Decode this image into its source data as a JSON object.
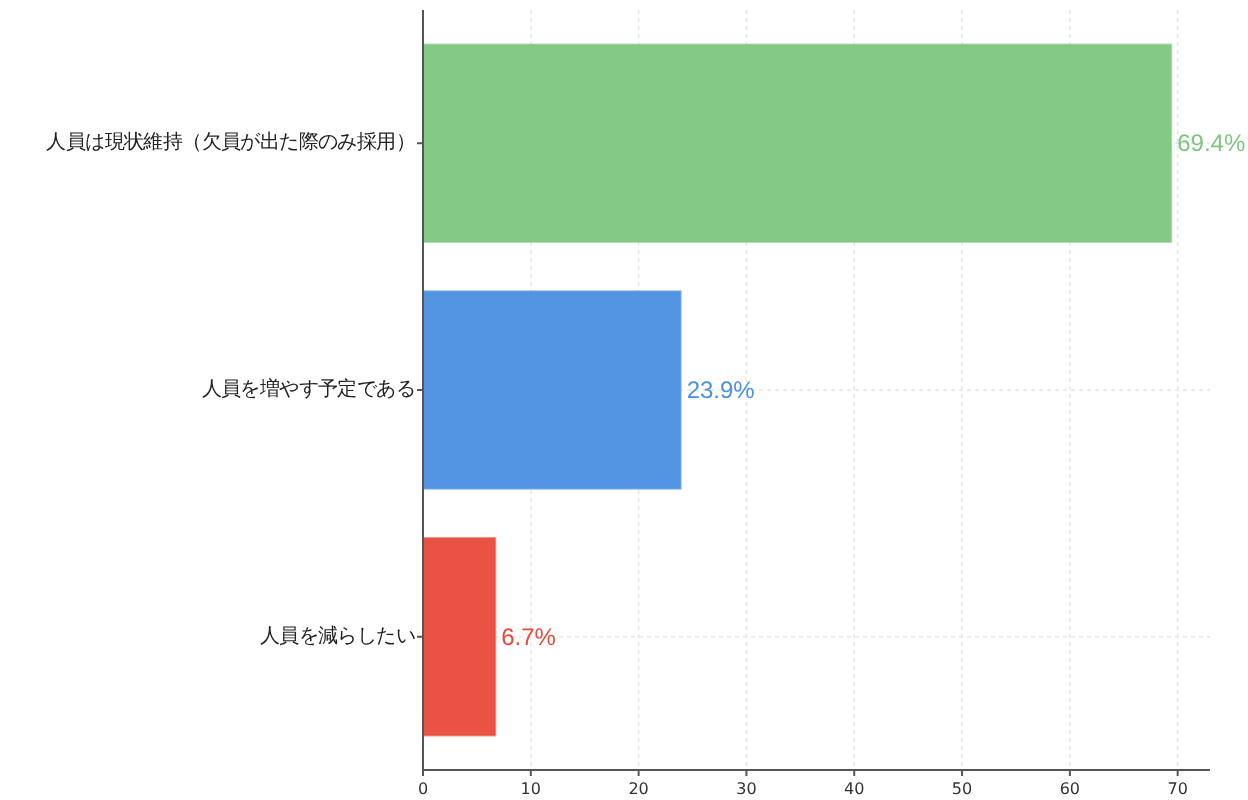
{
  "chart_data": {
    "type": "bar",
    "orientation": "horizontal",
    "categories": [
      "人員は現状維持（欠員が出た際のみ採用）",
      "人員を増やす予定である",
      "人員を減らしたい"
    ],
    "values": [
      69.4,
      23.9,
      6.7
    ],
    "colors": [
      "#7dc67e",
      "#4a8fe2",
      "#e84a3a"
    ],
    "value_labels": [
      "69.4%",
      "23.9%",
      "6.7%"
    ],
    "xlim": [
      0,
      73
    ],
    "xticks": [
      0,
      10,
      20,
      30,
      40,
      50,
      60,
      70
    ],
    "grid": true
  }
}
